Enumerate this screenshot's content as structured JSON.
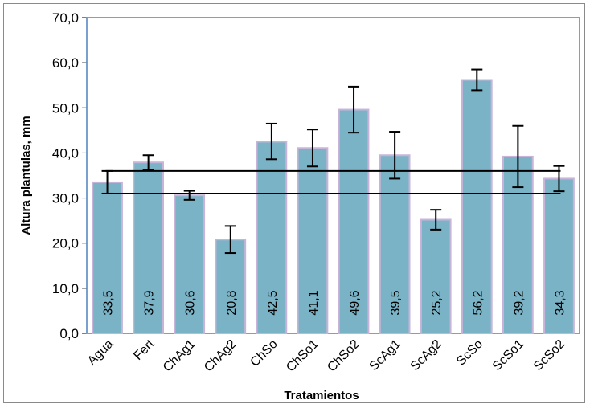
{
  "chart_data": {
    "type": "bar",
    "title": "",
    "xlabel": "Tratamientos",
    "ylabel": "Altura plantulas, mm",
    "ylim": [
      0,
      70
    ],
    "yticks": [
      "0,0",
      "10,0",
      "20,0",
      "30,0",
      "40,0",
      "50,0",
      "60,0",
      "70,0"
    ],
    "grid": false,
    "categories": [
      "Agua",
      "Fert",
      "ChAg1",
      "ChAg2",
      "ChSo",
      "ChSo1",
      "ChSo2",
      "ScAg1",
      "ScAg2",
      "ScSo",
      "ScSo1",
      "ScSo2"
    ],
    "values": [
      33.5,
      37.9,
      30.6,
      20.8,
      42.5,
      41.1,
      49.6,
      39.5,
      25.2,
      56.2,
      39.2,
      34.3
    ],
    "value_labels": [
      "33,5",
      "37,9",
      "30,6",
      "20,8",
      "42,5",
      "41,1",
      "49,6",
      "39,5",
      "25,2",
      "56,2",
      "39,2",
      "34,3"
    ],
    "error_bars": [
      {
        "low": 31.0,
        "high": 36.0
      },
      {
        "low": 36.2,
        "high": 39.5
      },
      {
        "low": 29.6,
        "high": 31.6
      },
      {
        "low": 17.8,
        "high": 23.8
      },
      {
        "low": 38.6,
        "high": 46.5
      },
      {
        "low": 37.0,
        "high": 45.2
      },
      {
        "low": 44.5,
        "high": 54.7
      },
      {
        "low": 34.3,
        "high": 44.7
      },
      {
        "low": 23.0,
        "high": 27.4
      },
      {
        "low": 53.9,
        "high": 58.5
      },
      {
        "low": 32.4,
        "high": 46.0
      },
      {
        "low": 31.5,
        "high": 37.1
      }
    ],
    "reference_lines": [
      31.0,
      36.0
    ],
    "colors": {
      "bar_fill": "#7bb3c6",
      "bar_border": "#c9b4d9",
      "plot_border": "#4f81bd",
      "error_bar": "#000000",
      "reference_line": "#000000"
    }
  }
}
